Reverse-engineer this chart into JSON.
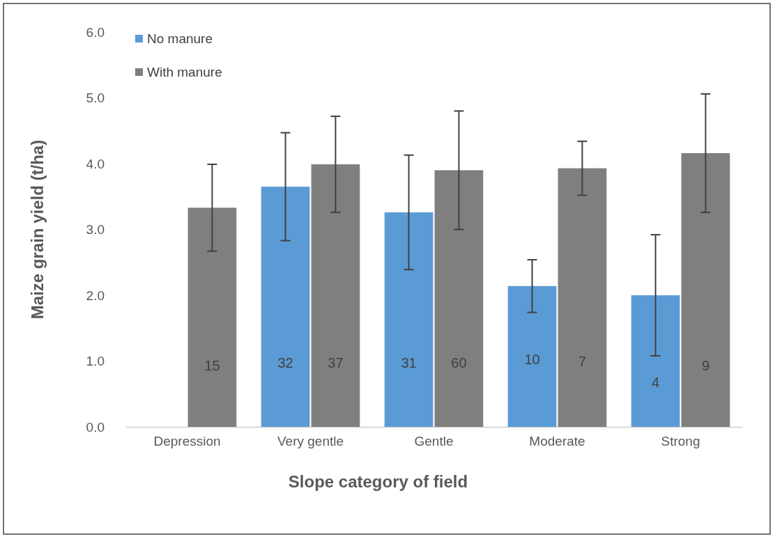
{
  "chart_data": {
    "type": "bar",
    "xlabel": "Slope category of field",
    "ylabel": "Maize grain yield (t/ha)",
    "categories": [
      "Depression",
      "Very gentle",
      "Gentle",
      "Moderate",
      "Strong"
    ],
    "series": [
      {
        "name": "No manure",
        "color": "#5b9bd5",
        "values": [
          null,
          3.65,
          3.26,
          2.14,
          2.0
        ],
        "errors": [
          null,
          0.82,
          0.87,
          0.4,
          0.92
        ]
      },
      {
        "name": "With manure",
        "color": "#7f7f7f",
        "values": [
          3.33,
          3.99,
          3.9,
          3.93,
          4.16
        ],
        "errors": [
          0.66,
          0.73,
          0.9,
          0.41,
          0.9
        ]
      }
    ],
    "ylim": [
      0,
      6
    ],
    "yticks": [
      {
        "value": 0,
        "label": "0.0"
      },
      {
        "value": 1,
        "label": "1.0"
      },
      {
        "value": 2,
        "label": "2.0"
      },
      {
        "value": 3,
        "label": "3.0"
      },
      {
        "value": 4,
        "label": "4.0"
      },
      {
        "value": 5,
        "label": "5.0"
      },
      {
        "value": 6,
        "label": "6.0"
      }
    ],
    "legend": "top left",
    "grid": false,
    "annotations": [
      {
        "text": "15",
        "x": "Depression",
        "y": 0.93
      },
      {
        "text": "32",
        "x": "Very gentle",
        "y": 0.97
      },
      {
        "text": "37",
        "x": "Very gentle",
        "y": 0.97
      },
      {
        "text": "31",
        "x": "Gentle",
        "y": 0.97
      },
      {
        "text": "60",
        "x": "Gentle",
        "y": 0.97
      },
      {
        "text": "10",
        "x": "Moderate",
        "y": 1.03
      },
      {
        "text": "7",
        "x": "Moderate",
        "y": 1.0
      },
      {
        "text": "4",
        "x": "Strong",
        "y": 0.68
      },
      {
        "text": "9",
        "x": "Strong",
        "y": 0.93
      }
    ]
  }
}
